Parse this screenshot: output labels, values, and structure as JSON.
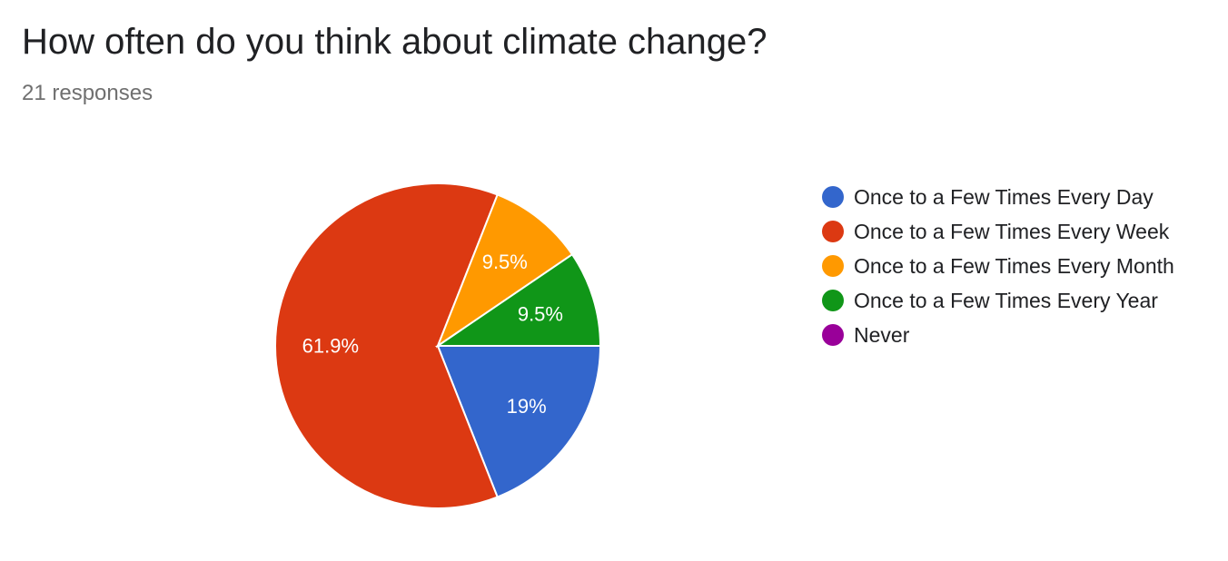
{
  "header": {
    "title": "How often do you think about climate change?",
    "responses": "21 responses"
  },
  "chart_data": {
    "type": "pie",
    "title": "How often do you think about climate change?",
    "categories": [
      "Once to a Few Times Every Day",
      "Once to a Few Times Every Week",
      "Once to a Few Times Every Month",
      "Once to a Few Times Every Year",
      "Never"
    ],
    "values": [
      19,
      61.9,
      9.5,
      9.5,
      0
    ],
    "data_labels": [
      "19%",
      "61.9%",
      "9.5%",
      "9.5%",
      ""
    ],
    "colors": [
      "#3366cc",
      "#dc3912",
      "#ff9900",
      "#109618",
      "#990099"
    ],
    "legend_position": "right"
  }
}
